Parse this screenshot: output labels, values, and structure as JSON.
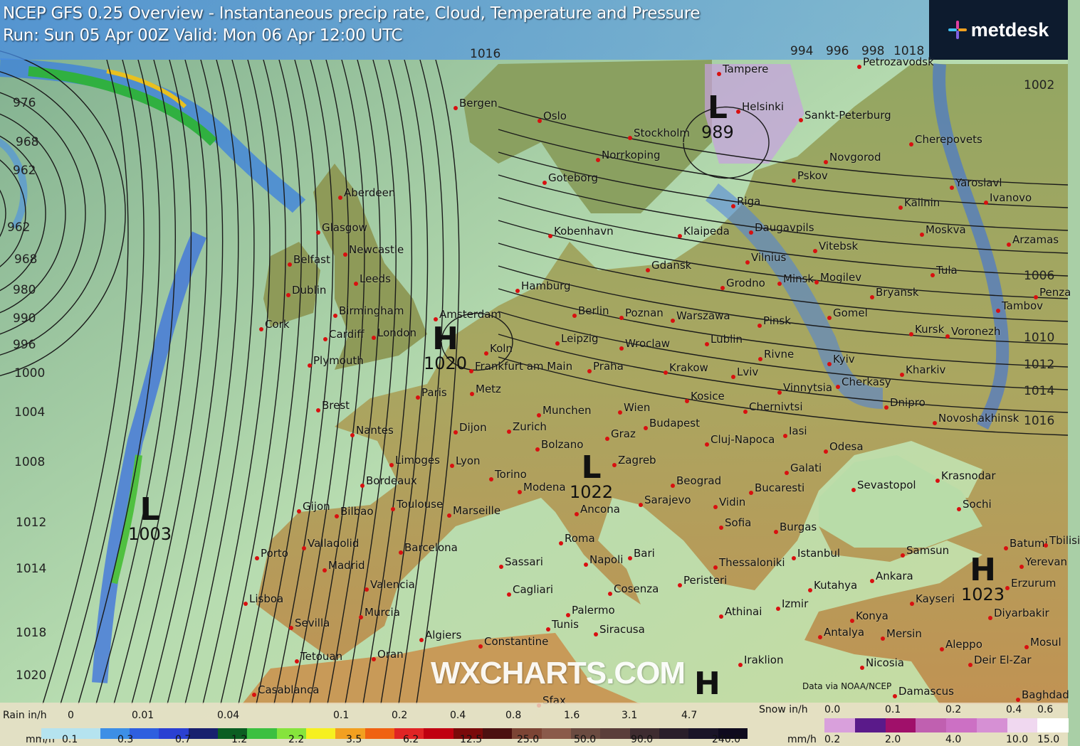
{
  "header": {
    "title": "NCEP GFS 0.25 Overview - Instantaneous precip rate, Cloud, Temperature and Pressure",
    "run": "Run: Sun 05 Apr 00Z Valid: Mon 06 Apr 12:00 UTC"
  },
  "brand": {
    "logo_text": "metdesk",
    "watermark": "WXCHARTS.COM",
    "credit": "Data via NOAA/NCEP"
  },
  "pressure_centers": [
    {
      "symbol": "L",
      "value": "1003"
    },
    {
      "symbol": "H",
      "value": "1020"
    },
    {
      "symbol": "L",
      "value": "1022"
    },
    {
      "symbol": "L",
      "value": "989"
    },
    {
      "symbol": "H",
      "value": "1023"
    },
    {
      "symbol": "H",
      "value": ""
    }
  ],
  "isobar_labels": [
    "976",
    "968",
    "962",
    "962",
    "968",
    "980",
    "990",
    "996",
    "1000",
    "1004",
    "1008",
    "1012",
    "1014",
    "1018",
    "1020",
    "1002",
    "1006",
    "1010",
    "1012",
    "1014",
    "1016",
    "994",
    "996",
    "998",
    "1016",
    "1018"
  ],
  "cities": [
    "Tampere",
    "Petrozavodsk",
    "Bergen",
    "Oslo",
    "Helsinki",
    "Sankt-Peterburg",
    "Stockholm",
    "Cherepovets",
    "Norrkoping",
    "Novgorod",
    "Goteborg",
    "Pskov",
    "Yaroslavl",
    "Ivanovo",
    "Aberdeen",
    "Kalinin",
    "Riga",
    "Glasgow",
    "Klaipeda",
    "Daugavpils",
    "Moskva",
    "Kobenhavn",
    "Arzamas",
    "Newcastle",
    "Vitebsk",
    "Belfast",
    "Vilnius",
    "Tula",
    "Gdansk",
    "Dublin",
    "Minsk",
    "Mogilev",
    "Leeds",
    "Hamburg",
    "Grodno",
    "Bryansk",
    "Penza",
    "Birmingham",
    "Amsterdam",
    "Berlin",
    "Poznan",
    "Warszawa",
    "Tambov",
    "Cork",
    "Pinsk",
    "Gomel",
    "Kursk",
    "Voronezh",
    "Cardiff",
    "London",
    "Koln",
    "Leipzig",
    "Lublin",
    "Wroclaw",
    "Plymouth",
    "Rivne",
    "Kyiv",
    "Frankfurt am Main",
    "Praha",
    "Krakow",
    "Lviv",
    "Kharkiv",
    "Cherkasy",
    "Vinnytsia",
    "Metz",
    "Paris",
    "Brest",
    "Chernivtsi",
    "Dnipro",
    "Kosice",
    "Munchen",
    "Wien",
    "Novoshakhinsk",
    "Budapest",
    "Nantes",
    "Dijon",
    "Zurich",
    "Graz",
    "Iasi",
    "Cluj-Napoca",
    "Odesa",
    "Limoges",
    "Lyon",
    "Bolzano",
    "Zagreb",
    "Krasnodar",
    "Torino",
    "Modena",
    "Galati",
    "Beograd",
    "Bordeaux",
    "Bucaresti",
    "Sevastopol",
    "Vidin",
    "Sarajevo",
    "Ancona",
    "Toulouse",
    "Marseille",
    "Gijon",
    "Bilbao",
    "Sochi",
    "Sofia",
    "Burgas",
    "Valladolid",
    "Roma",
    "Bari",
    "Istanbul",
    "Samsun",
    "Batumi",
    "Tbilisi",
    "Barcelona",
    "Napoli",
    "Sassari",
    "Porto",
    "Madrid",
    "Thessaloniki",
    "Erzurum",
    "Yerevan",
    "Kutahya",
    "Ankara",
    "Peristeri",
    "Valencia",
    "Cagliari",
    "Cosenza",
    "Kayseri",
    "Lisboa",
    "Izmir",
    "Athinai",
    "Murcia",
    "Palermo",
    "Diyarbakir",
    "Konya",
    "Sevilla",
    "Siracusa",
    "Antalya",
    "Mersin",
    "Mosul",
    "Algiers",
    "Tunis",
    "Constantine",
    "Aleppo",
    "Tetouan",
    "Oran",
    "Nicosia",
    "Deir El-Zar",
    "Sfax",
    "Iraklion",
    "Casablanca",
    "Damascus",
    "Baghdad"
  ],
  "legend": {
    "rain": {
      "label_top": "Rain in/h",
      "label_bottom": "mm/h",
      "inch_ticks": [
        "0",
        "0.01",
        "0.04",
        "0.1",
        "0.2",
        "0.4",
        "0.8",
        "1.6",
        "3.1",
        "4.7"
      ],
      "mm_ticks": [
        "0.1",
        "0.3",
        "0.7",
        "1.2",
        "2.2",
        "3.5",
        "6.2",
        "12.5",
        "25.0",
        "50.0",
        "90.0",
        "240.0"
      ],
      "colors": [
        "#b5e3ef",
        "#b5e3ef",
        "#3d8fe6",
        "#2e5fdf",
        "#2a40d2",
        "#18206e",
        "#0b5e22",
        "#3cc040",
        "#86e43c",
        "#f6f020",
        "#f2a020",
        "#f06212",
        "#e02424",
        "#c00010",
        "#7a0a0a",
        "#4c1010",
        "#7c4434",
        "#8a5a4a",
        "#6a4a40",
        "#5a3e3a",
        "#3e2c30",
        "#2a1e2a",
        "#1a1428",
        "#0e0a1e"
      ]
    },
    "snow": {
      "label_top": "Snow in/h",
      "label_bottom": "mm/h",
      "inch_ticks": [
        "0.0",
        "0.1",
        "0.2",
        "0.4",
        "0.6"
      ],
      "mm_ticks": [
        "0.2",
        "2.0",
        "4.0",
        "10.0",
        "15.0"
      ],
      "colors": [
        "#d9a0dc",
        "#5a1a8a",
        "#a0106a",
        "#c060b0",
        "#cc70c4",
        "#d690d4",
        "#f0d8f0",
        "#ffffff"
      ]
    }
  }
}
